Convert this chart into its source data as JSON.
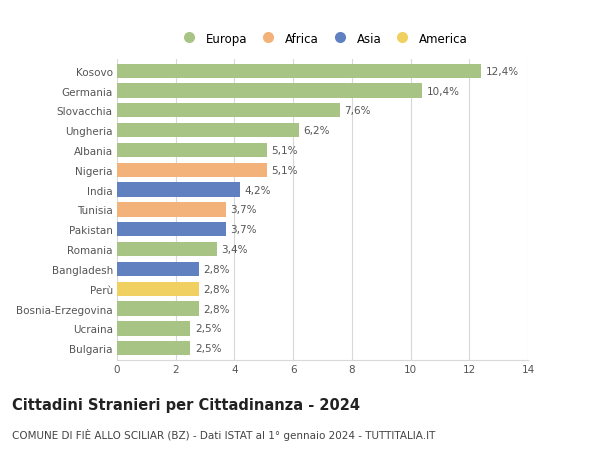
{
  "countries": [
    "Kosovo",
    "Germania",
    "Slovacchia",
    "Ungheria",
    "Albania",
    "Nigeria",
    "India",
    "Tunisia",
    "Pakistan",
    "Romania",
    "Bangladesh",
    "Perù",
    "Bosnia-Erzegovina",
    "Ucraina",
    "Bulgaria"
  ],
  "values": [
    12.4,
    10.4,
    7.6,
    6.2,
    5.1,
    5.1,
    4.2,
    3.7,
    3.7,
    3.4,
    2.8,
    2.8,
    2.8,
    2.5,
    2.5
  ],
  "labels": [
    "12,4%",
    "10,4%",
    "7,6%",
    "6,2%",
    "5,1%",
    "5,1%",
    "4,2%",
    "3,7%",
    "3,7%",
    "3,4%",
    "2,8%",
    "2,8%",
    "2,8%",
    "2,5%",
    "2,5%"
  ],
  "continents": [
    "Europa",
    "Europa",
    "Europa",
    "Europa",
    "Europa",
    "Africa",
    "Asia",
    "Africa",
    "Asia",
    "Europa",
    "Asia",
    "America",
    "Europa",
    "Europa",
    "Europa"
  ],
  "continent_colors": {
    "Europa": "#a8c484",
    "Africa": "#f2b27a",
    "Asia": "#6080c0",
    "America": "#f0d060"
  },
  "legend_order": [
    "Europa",
    "Africa",
    "Asia",
    "America"
  ],
  "title": "Cittadini Stranieri per Cittadinanza - 2024",
  "subtitle": "COMUNE DI FIÈ ALLO SCILIAR (BZ) - Dati ISTAT al 1° gennaio 2024 - TUTTITALIA.IT",
  "xlim": [
    0,
    14
  ],
  "xticks": [
    0,
    2,
    4,
    6,
    8,
    10,
    12,
    14
  ],
  "background_color": "#ffffff",
  "grid_color": "#d8d8d8",
  "bar_height": 0.72,
  "title_fontsize": 10.5,
  "subtitle_fontsize": 7.5,
  "label_fontsize": 7.5,
  "tick_fontsize": 7.5,
  "legend_fontsize": 8.5
}
